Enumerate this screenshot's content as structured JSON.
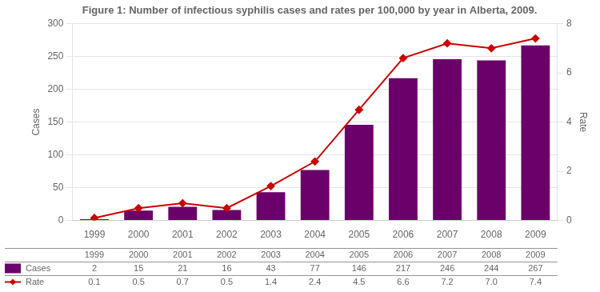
{
  "chart_data": {
    "type": "bar",
    "title": "Figure 1: Number of infectious syphilis cases and rates per 100,000 by year in Alberta, 2009.",
    "categories": [
      "1999",
      "2000",
      "2001",
      "2002",
      "2003",
      "2004",
      "2005",
      "2006",
      "2007",
      "2008",
      "2009"
    ],
    "series": [
      {
        "name": "Cases",
        "type": "bar",
        "color": "#6B006B",
        "values": [
          2,
          15,
          21,
          16,
          43,
          77,
          146,
          217,
          246,
          244,
          267
        ]
      },
      {
        "name": "Rate",
        "type": "line",
        "color": "#CC0000",
        "marker": "diamond",
        "axis": "y2",
        "values": [
          0.1,
          0.5,
          0.7,
          0.5,
          1.4,
          2.4,
          4.5,
          6.6,
          7.2,
          7.0,
          7.4
        ],
        "value_labels": [
          "0.1",
          "0.5",
          "0.7",
          "0.5",
          "1.4",
          "2.4",
          "4.5",
          "6.6",
          "7.2",
          "7.0",
          "7.4"
        ]
      }
    ],
    "ylabel": "Cases",
    "y2label": "Rate",
    "ylim": [
      0,
      300
    ],
    "yticks": [
      0,
      50,
      100,
      150,
      200,
      250,
      300
    ],
    "y2lim": [
      0,
      8
    ],
    "y2ticks": [
      0,
      2,
      4,
      6,
      8
    ],
    "grid": true,
    "legend": "bottom"
  }
}
